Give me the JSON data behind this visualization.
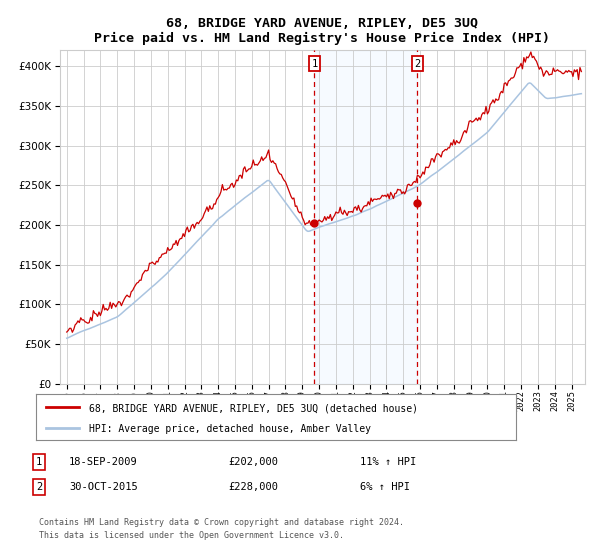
{
  "title": "68, BRIDGE YARD AVENUE, RIPLEY, DE5 3UQ",
  "subtitle": "Price paid vs. HM Land Registry's House Price Index (HPI)",
  "legend_line1": "68, BRIDGE YARD AVENUE, RIPLEY, DE5 3UQ (detached house)",
  "legend_line2": "HPI: Average price, detached house, Amber Valley",
  "annotation1_label": "1",
  "annotation1_date": "18-SEP-2009",
  "annotation1_price": "£202,000",
  "annotation1_hpi": "11% ↑ HPI",
  "annotation1_year": 2009.72,
  "annotation1_value": 202000,
  "annotation2_label": "2",
  "annotation2_date": "30-OCT-2015",
  "annotation2_price": "£228,000",
  "annotation2_hpi": "6% ↑ HPI",
  "annotation2_year": 2015.83,
  "annotation2_value": 228000,
  "hpi_color": "#aac4e0",
  "price_color": "#cc0000",
  "background_color": "#ffffff",
  "grid_color": "#cccccc",
  "shading_color": "#ddeeff",
  "footer": "Contains HM Land Registry data © Crown copyright and database right 2024.\nThis data is licensed under the Open Government Licence v3.0.",
  "ylim": [
    0,
    420000
  ],
  "yticks": [
    0,
    50000,
    100000,
    150000,
    200000,
    250000,
    300000,
    350000,
    400000
  ],
  "xlim_start": 1994.6,
  "xlim_end": 2025.8
}
